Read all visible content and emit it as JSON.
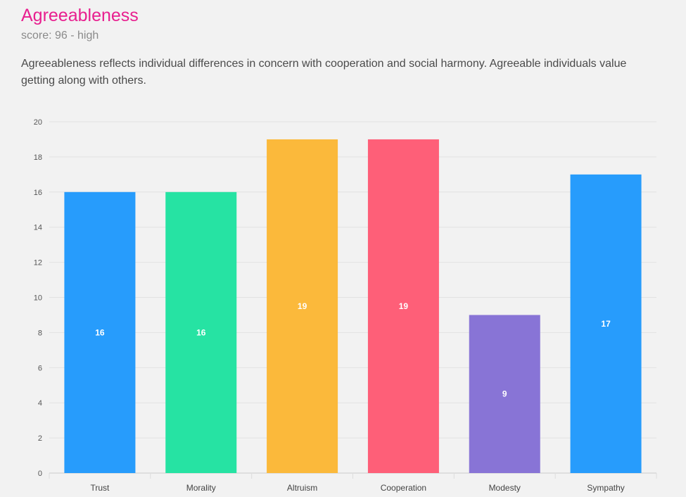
{
  "header": {
    "title": "Agreeableness",
    "subtitle": "score: 96 - high",
    "description": "Agreeableness reflects individual differences in concern with cooperation and social harmony. Agreeable individuals value getting along with others."
  },
  "chart_data": {
    "type": "bar",
    "categories": [
      "Trust",
      "Morality",
      "Altruism",
      "Cooperation",
      "Modesty",
      "Sympathy"
    ],
    "values": [
      16,
      16,
      19,
      19,
      9,
      17
    ],
    "colors": [
      "#279cfc",
      "#26e3a3",
      "#fbb93b",
      "#fe5f78",
      "#8874d6",
      "#279cfc"
    ],
    "ylim": [
      0,
      20
    ],
    "yticks": [
      0,
      2,
      4,
      6,
      8,
      10,
      12,
      14,
      16,
      18,
      20
    ],
    "grid": true,
    "data_labels": true
  }
}
